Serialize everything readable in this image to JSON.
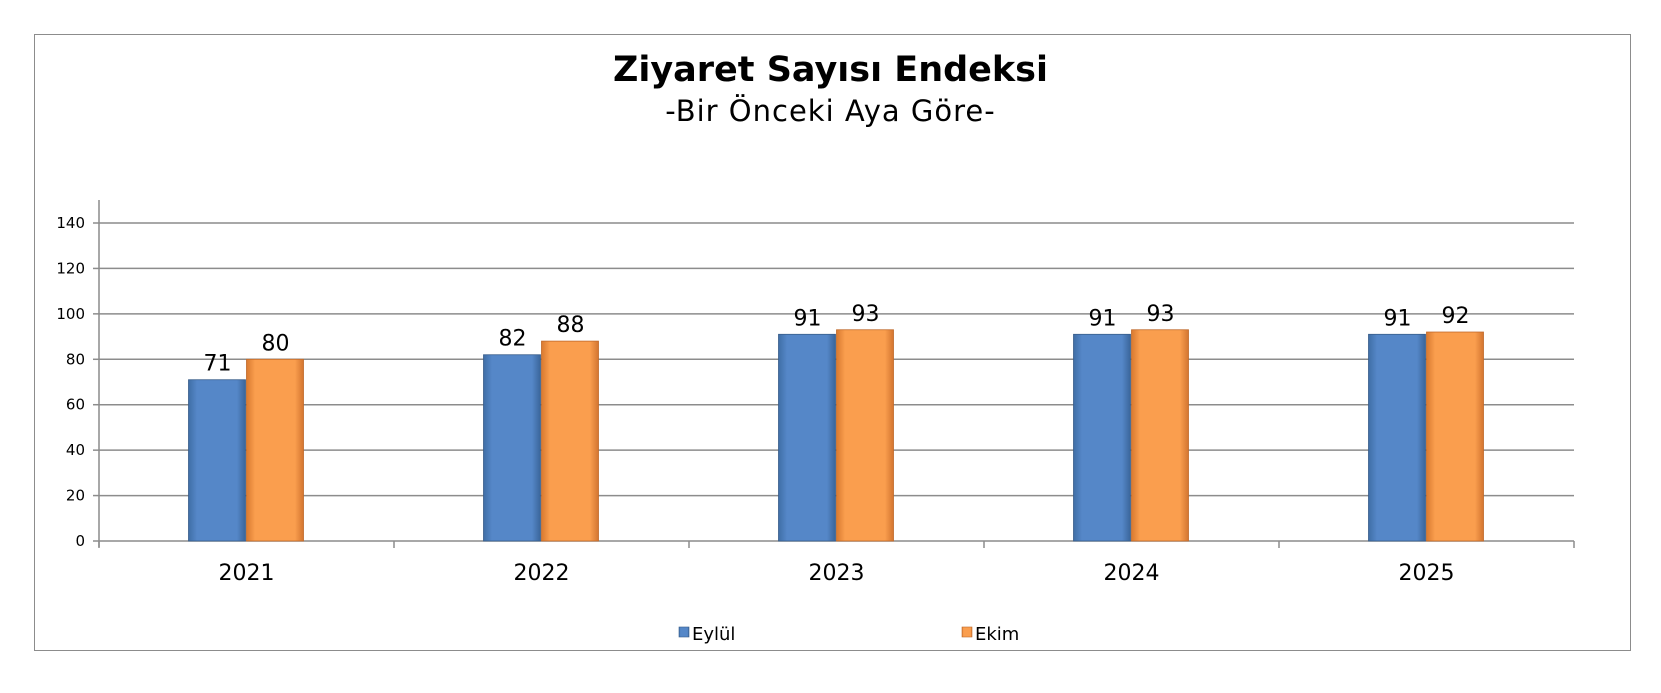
{
  "chart_data": {
    "type": "bar",
    "title": "Ziyaret Sayısı Endeksi",
    "subtitle": "-Bir Önceki Aya Göre-",
    "categories": [
      "2021",
      "2022",
      "2023",
      "2024",
      "2025"
    ],
    "series": [
      {
        "name": "Eylül",
        "color": "#4f81bd",
        "values": [
          71,
          82,
          91,
          91,
          91
        ]
      },
      {
        "name": "Ekim",
        "color": "#f79646",
        "values": [
          80,
          88,
          93,
          93,
          92
        ]
      }
    ],
    "yticks": [
      0,
      20,
      40,
      60,
      80,
      100,
      120,
      140
    ],
    "ylim": [
      0,
      140
    ],
    "xlabel": "",
    "ylabel": "",
    "grid": true,
    "legend": "bottom"
  }
}
